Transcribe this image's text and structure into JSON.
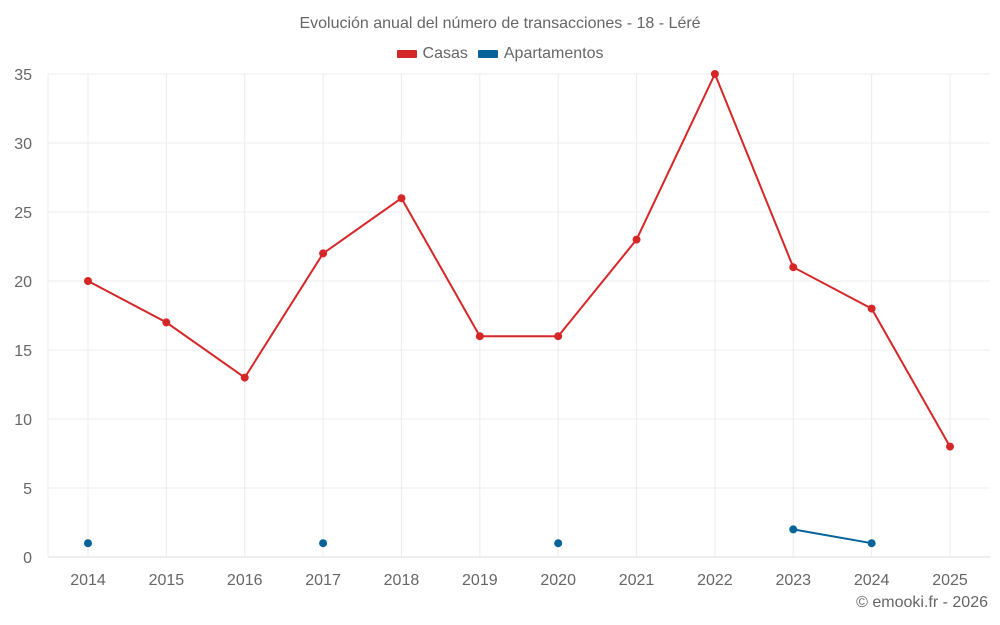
{
  "title": "Evolución anual del número de transacciones - 18 - Léré",
  "legend": [
    {
      "label": "Casas",
      "color": "#d62728"
    },
    {
      "label": "Apartamentos",
      "color": "#05639a"
    }
  ],
  "credit": "© emooki.fr - 2026",
  "chart_data": {
    "type": "line",
    "title": "Evolución anual del número de transacciones - 18 - Léré",
    "xlabel": "",
    "ylabel": "",
    "categories": [
      "2014",
      "2015",
      "2016",
      "2017",
      "2018",
      "2019",
      "2020",
      "2021",
      "2022",
      "2023",
      "2024",
      "2025"
    ],
    "series": [
      {
        "name": "Casas",
        "color": "#d62728",
        "values": [
          20,
          17,
          13,
          22,
          26,
          16,
          16,
          23,
          35,
          21,
          18,
          8
        ]
      },
      {
        "name": "Apartamentos",
        "color": "#05639a",
        "values": [
          1,
          null,
          null,
          1,
          null,
          null,
          1,
          null,
          null,
          2,
          1,
          null
        ]
      }
    ],
    "yticks": [
      0,
      5,
      10,
      15,
      20,
      25,
      30,
      35
    ],
    "ylim": [
      0,
      35
    ],
    "grid": true,
    "legend_position": "top"
  }
}
